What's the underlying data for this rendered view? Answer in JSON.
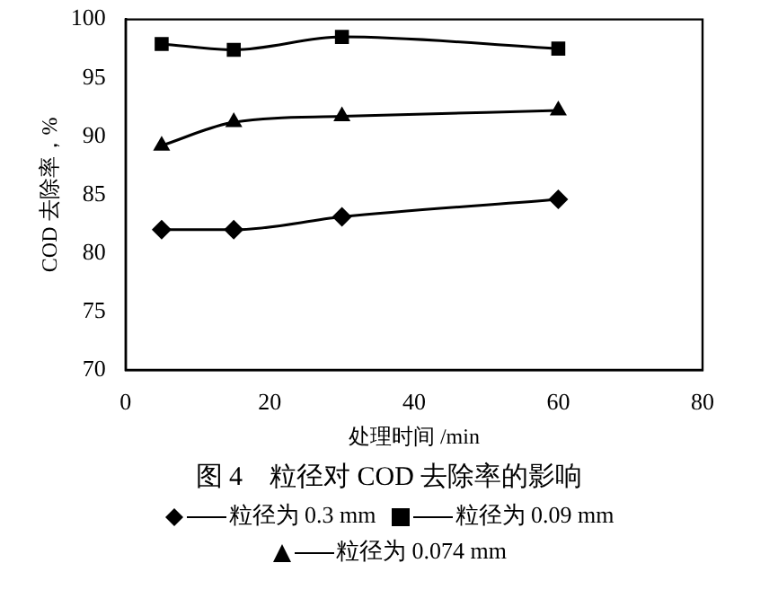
{
  "chart_data": {
    "type": "line",
    "title": "图 4　粒径对 COD 去除率的影响",
    "xlabel": "处理时间 /min",
    "ylabel": "COD 去除率，%",
    "x": [
      5,
      15,
      30,
      60
    ],
    "series": [
      {
        "name": "粒径为 0.3 mm",
        "color": "#000000",
        "marker": "diamond",
        "values": [
          82.0,
          82.0,
          83.1,
          84.6
        ]
      },
      {
        "name": "粒径为 0.09 mm",
        "color": "#000000",
        "marker": "square",
        "values": [
          97.9,
          97.4,
          98.5,
          97.5
        ]
      },
      {
        "name": "粒径为 0.074 mm",
        "color": "#000000",
        "marker": "triangle",
        "values": [
          89.2,
          91.2,
          91.7,
          92.2
        ]
      }
    ],
    "xlim": [
      0,
      80
    ],
    "xticks": [
      0,
      20,
      40,
      60,
      80
    ],
    "ylim": [
      70,
      100
    ],
    "yticks": [
      70,
      75,
      80,
      85,
      90,
      95,
      100
    ],
    "grid": false,
    "legend": "bottom",
    "line_style": "solid"
  }
}
